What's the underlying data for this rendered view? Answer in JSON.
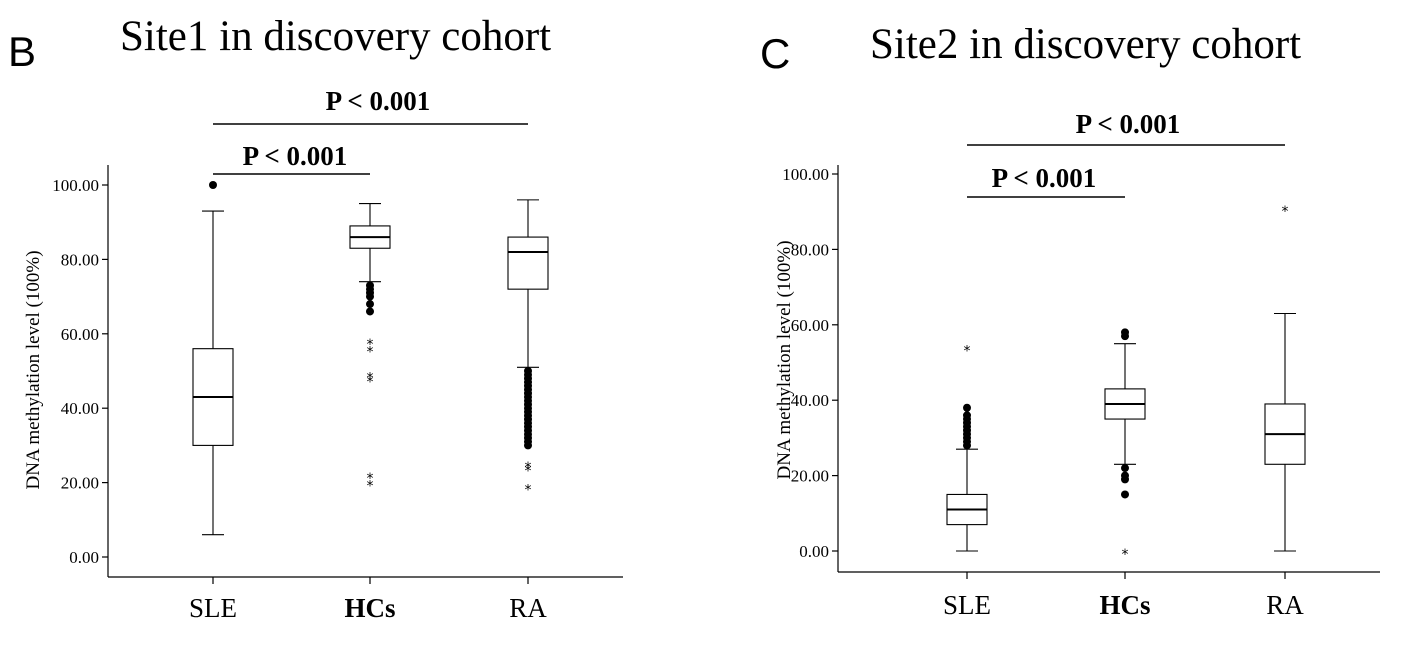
{
  "chart_data": [
    {
      "type": "box",
      "panel_letter": "B",
      "title": "Site1 in discovery cohort",
      "ylabel": "DNA methylation level (100%)",
      "ylim": [
        0,
        100
      ],
      "yticks": [
        "0.00",
        "20.00",
        "40.00",
        "60.00",
        "80.00",
        "100.00"
      ],
      "categories": [
        "SLE",
        "HCs",
        "RA"
      ],
      "boxes": [
        {
          "category": "SLE",
          "whisker_low": 6,
          "q1": 30,
          "median": 43,
          "q3": 56,
          "whisker_high": 93,
          "outliers": [
            100
          ],
          "extremes": []
        },
        {
          "category": "HCs",
          "whisker_low": 74,
          "q1": 83,
          "median": 86,
          "q3": 89,
          "whisker_high": 95,
          "outliers": [
            66,
            68,
            70,
            71,
            72,
            73
          ],
          "extremes": [
            58,
            56,
            49,
            48,
            22,
            20
          ]
        },
        {
          "category": "RA",
          "whisker_low": 51,
          "q1": 72,
          "median": 82,
          "q3": 86,
          "whisker_high": 96,
          "outliers": [
            30,
            31,
            32,
            33,
            34,
            35,
            36,
            37,
            38,
            39,
            40,
            41,
            42,
            43,
            44,
            45,
            46,
            47,
            48,
            49,
            50
          ],
          "extremes": [
            25,
            24,
            19
          ]
        }
      ],
      "comparisons": [
        {
          "from": "SLE",
          "to": "HCs",
          "label": "P < 0.001"
        },
        {
          "from": "SLE",
          "to": "RA",
          "label": "P < 0.001"
        }
      ]
    },
    {
      "type": "box",
      "panel_letter": "C",
      "title": "Site2 in discovery cohort",
      "ylabel": "DNA methylation level (100%)",
      "ylim": [
        0,
        100
      ],
      "yticks": [
        "0.00",
        "20.00",
        "40.00",
        "60.00",
        "80.00",
        "100.00"
      ],
      "categories": [
        "SLE",
        "HCs",
        "RA"
      ],
      "boxes": [
        {
          "category": "SLE",
          "whisker_low": 0,
          "q1": 7,
          "median": 11,
          "q3": 15,
          "whisker_high": 27,
          "outliers": [
            28,
            29,
            30,
            31,
            32,
            33,
            34,
            35,
            36,
            38
          ],
          "extremes": [
            54
          ]
        },
        {
          "category": "HCs",
          "whisker_low": 23,
          "q1": 35,
          "median": 39,
          "q3": 43,
          "whisker_high": 55,
          "outliers": [
            15,
            19,
            20,
            22,
            57,
            58
          ],
          "extremes": [
            0
          ]
        },
        {
          "category": "RA",
          "whisker_low": 0,
          "q1": 23,
          "median": 31,
          "q3": 39,
          "whisker_high": 63,
          "outliers": [],
          "extremes": [
            91
          ]
        }
      ],
      "comparisons": [
        {
          "from": "SLE",
          "to": "HCs",
          "label": "P < 0.001"
        },
        {
          "from": "SLE",
          "to": "RA",
          "label": "P < 0.001"
        }
      ]
    }
  ]
}
